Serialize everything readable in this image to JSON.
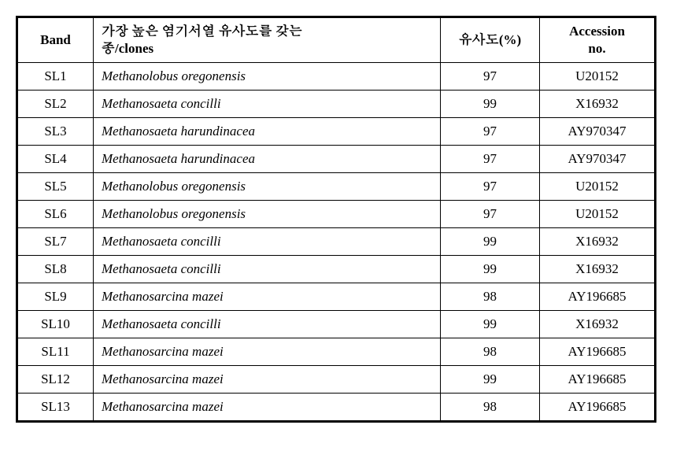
{
  "table": {
    "headers": {
      "band": "Band",
      "species": "가장 높은 염기서열 유사도를 갖는\n종/clones",
      "similarity": "유사도(%)",
      "accession": "Accession\nno."
    },
    "rows": [
      {
        "band": "SL1",
        "species": "Methanolobus oregonensis",
        "similarity": "97",
        "accession": "U20152"
      },
      {
        "band": "SL2",
        "species": "Methanosaeta concilli",
        "similarity": "99",
        "accession": "X16932"
      },
      {
        "band": "SL3",
        "species": "Methanosaeta harundinacea",
        "similarity": "97",
        "accession": "AY970347"
      },
      {
        "band": "SL4",
        "species": "Methanosaeta harundinacea",
        "similarity": "97",
        "accession": "AY970347"
      },
      {
        "band": "SL5",
        "species": "Methanolobus oregonensis",
        "similarity": "97",
        "accession": "U20152"
      },
      {
        "band": "SL6",
        "species": "Methanolobus oregonensis",
        "similarity": "97",
        "accession": "U20152"
      },
      {
        "band": "SL7",
        "species": "Methanosaeta concilli",
        "similarity": "99",
        "accession": "X16932"
      },
      {
        "band": "SL8",
        "species": "Methanosaeta concilli",
        "similarity": "99",
        "accession": "X16932"
      },
      {
        "band": "SL9",
        "species": "Methanosarcina mazei",
        "similarity": "98",
        "accession": "AY196685"
      },
      {
        "band": "SL10",
        "species": "Methanosaeta concilli",
        "similarity": "99",
        "accession": "X16932"
      },
      {
        "band": "SL11",
        "species": "Methanosarcina mazei",
        "similarity": "98",
        "accession": "AY196685"
      },
      {
        "band": "SL12",
        "species": "Methanosarcina mazei",
        "similarity": "99",
        "accession": "AY196685"
      },
      {
        "band": "SL13",
        "species": "Methanosarcina mazei",
        "similarity": "98",
        "accession": "AY196685"
      }
    ]
  }
}
